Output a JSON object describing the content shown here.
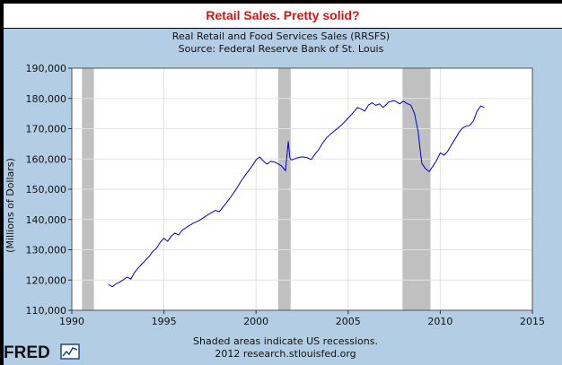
{
  "headline": "Retail Sales. Pretty solid?",
  "chart_data": {
    "type": "line",
    "title": "Real Retail and Food Services Sales (RRSFS)",
    "subtitle": "Source: Federal Reserve Bank of St. Louis",
    "ylabel": "(Millions of Dollars)",
    "xlim": [
      1990,
      2015
    ],
    "ylim": [
      110000,
      190000
    ],
    "x_ticks": [
      "1990",
      "1995",
      "2000",
      "2005",
      "2010",
      "2015"
    ],
    "y_ticks": [
      "110,000",
      "120,000",
      "130,000",
      "140,000",
      "150,000",
      "160,000",
      "170,000",
      "180,000",
      "190,000"
    ],
    "grid": true,
    "recessions": [
      [
        1990.55,
        1991.2
      ],
      [
        2001.2,
        2001.88
      ],
      [
        2007.95,
        2009.47
      ]
    ],
    "series": [
      {
        "color": "#0000cc",
        "x": [
          1992.0,
          1992.2,
          1992.4,
          1992.6,
          1992.8,
          1993.0,
          1993.2,
          1993.4,
          1993.6,
          1993.8,
          1994.0,
          1994.2,
          1994.4,
          1994.6,
          1994.8,
          1995.0,
          1995.2,
          1995.4,
          1995.6,
          1995.8,
          1996.0,
          1996.3,
          1996.6,
          1996.9,
          1997.2,
          1997.5,
          1997.8,
          1998.0,
          1998.3,
          1998.6,
          1998.9,
          1999.2,
          1999.5,
          1999.8,
          2000.0,
          2000.2,
          2000.4,
          2000.6,
          2000.8,
          2001.0,
          2001.2,
          2001.4,
          2001.6,
          2001.75,
          2001.83,
          2001.9,
          2002.0,
          2002.2,
          2002.5,
          2002.8,
          2003.0,
          2003.2,
          2003.4,
          2003.6,
          2003.8,
          2004.0,
          2004.3,
          2004.6,
          2004.9,
          2005.2,
          2005.5,
          2005.7,
          2005.9,
          2006.1,
          2006.3,
          2006.5,
          2006.7,
          2006.9,
          2007.2,
          2007.5,
          2007.8,
          2008.0,
          2008.2,
          2008.4,
          2008.6,
          2008.8,
          2008.9,
          2009.0,
          2009.2,
          2009.4,
          2009.6,
          2009.8,
          2010.0,
          2010.2,
          2010.4,
          2010.6,
          2010.8,
          2011.0,
          2011.2,
          2011.4,
          2011.6,
          2011.8,
          2012.0,
          2012.2,
          2012.4
        ],
        "values": [
          118500,
          117800,
          118700,
          119300,
          120100,
          121000,
          120300,
          122500,
          124000,
          125300,
          126500,
          127800,
          129500,
          130500,
          132500,
          133800,
          132800,
          134500,
          135500,
          134900,
          136500,
          137700,
          138800,
          139600,
          140800,
          142000,
          143000,
          142600,
          144800,
          147200,
          149800,
          152800,
          155300,
          157800,
          159700,
          160700,
          159300,
          158300,
          159200,
          159000,
          158400,
          157600,
          156100,
          165800,
          160500,
          159700,
          159800,
          160300,
          160700,
          160400,
          159800,
          161600,
          163100,
          165100,
          166800,
          168000,
          169500,
          171000,
          172800,
          174800,
          177000,
          176500,
          175800,
          177800,
          178600,
          177700,
          178200,
          177000,
          178800,
          179300,
          178200,
          179100,
          178300,
          177800,
          175000,
          169000,
          163500,
          158500,
          156800,
          155800,
          157600,
          159500,
          162000,
          161200,
          162500,
          164600,
          166500,
          168600,
          170200,
          170800,
          171100,
          172500,
          175800,
          177500,
          177000
        ]
      }
    ]
  },
  "footer": {
    "note_line1": "Shaded areas indicate US recessions.",
    "note_line2": "2012 research.stlouisfed.org"
  },
  "logo": {
    "text": "FRED"
  }
}
